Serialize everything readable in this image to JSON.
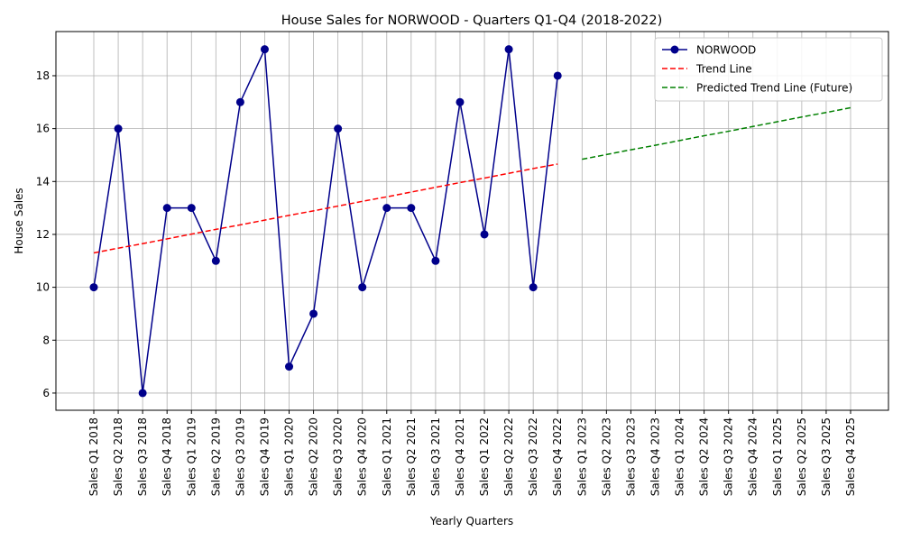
{
  "chart_data": {
    "type": "line",
    "title": "House Sales for NORWOOD - Quarters Q1-Q4 (2018-2022)",
    "x_label": "Yearly Quarters",
    "y_label": "House Sales",
    "categories": [
      "Sales Q1 2018",
      "Sales Q2 2018",
      "Sales Q3 2018",
      "Sales Q4 2018",
      "Sales Q1 2019",
      "Sales Q2 2019",
      "Sales Q3 2019",
      "Sales Q4 2019",
      "Sales Q1 2020",
      "Sales Q2 2020",
      "Sales Q3 2020",
      "Sales Q4 2020",
      "Sales Q1 2021",
      "Sales Q2 2021",
      "Sales Q3 2021",
      "Sales Q4 2021",
      "Sales Q1 2022",
      "Sales Q2 2022",
      "Sales Q3 2022",
      "Sales Q4 2022",
      "Sales Q1 2023",
      "Sales Q2 2023",
      "Sales Q3 2023",
      "Sales Q4 2023",
      "Sales Q1 2024",
      "Sales Q2 2024",
      "Sales Q3 2024",
      "Sales Q4 2024",
      "Sales Q1 2025",
      "Sales Q2 2025",
      "Sales Q3 2025",
      "Sales Q4 2025"
    ],
    "series": [
      {
        "name": "NORWOOD",
        "color": "#00008b",
        "linestyle": "solid",
        "marker": "circle",
        "values": [
          10,
          16,
          6,
          13,
          13,
          11,
          17,
          19,
          7,
          9,
          16,
          10,
          13,
          13,
          11,
          17,
          12,
          19,
          10,
          18,
          null,
          null,
          null,
          null,
          null,
          null,
          null,
          null,
          null,
          null,
          null,
          null
        ]
      },
      {
        "name": "Trend Line",
        "color": "#ff0000",
        "linestyle": "dashed",
        "marker": "none",
        "values": [
          11.3,
          11.48,
          11.65,
          11.83,
          12.01,
          12.19,
          12.36,
          12.54,
          12.72,
          12.89,
          13.07,
          13.25,
          13.42,
          13.6,
          13.78,
          13.96,
          14.13,
          14.31,
          14.49,
          14.66,
          null,
          null,
          null,
          null,
          null,
          null,
          null,
          null,
          null,
          null,
          null,
          null
        ]
      },
      {
        "name": "Predicted Trend Line (Future)",
        "color": "#008000",
        "linestyle": "dashed",
        "marker": "none",
        "values": [
          null,
          null,
          null,
          null,
          null,
          null,
          null,
          null,
          null,
          null,
          null,
          null,
          null,
          null,
          null,
          null,
          null,
          null,
          null,
          null,
          14.84,
          15.02,
          15.2,
          15.37,
          15.55,
          15.73,
          15.9,
          16.08,
          16.26,
          16.44,
          16.61,
          16.79
        ]
      }
    ],
    "ylim": [
      5.35,
      19.67
    ],
    "yticks": [
      6,
      8,
      10,
      12,
      14,
      16,
      18
    ],
    "grid": true,
    "legend": "upper right"
  }
}
